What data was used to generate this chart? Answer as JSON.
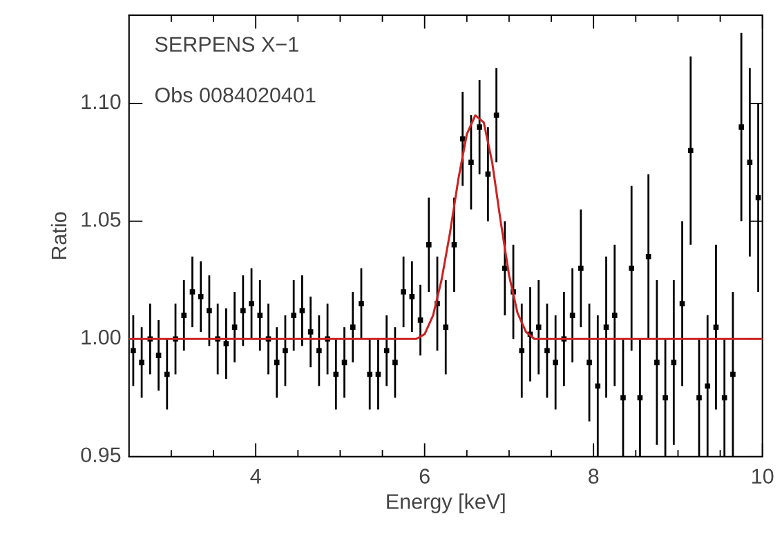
{
  "chart_data": {
    "type": "scatter",
    "xlabel": "Energy [keV]",
    "ylabel": "Ratio",
    "annotations": [
      "SERPENS X−1",
      "Obs 0084020401"
    ],
    "xlim": [
      2.5,
      10
    ],
    "xticks": [
      {
        "value": 3,
        "label": null
      },
      {
        "value": 3.5,
        "label": null
      },
      4,
      {
        "value": 4.5,
        "label": null
      },
      {
        "value": 5,
        "label": null
      },
      {
        "value": 5.5,
        "label": null
      },
      6,
      {
        "value": 6.5,
        "label": null
      },
      {
        "value": 7,
        "label": null
      },
      {
        "value": 7.5,
        "label": null
      },
      8,
      {
        "value": 8.5,
        "label": null
      },
      {
        "value": 9,
        "label": null
      },
      {
        "value": 9.5,
        "label": null
      },
      10
    ],
    "ylim": [
      0.95,
      1.1375
    ],
    "yticks": [
      {
        "value": 0.95,
        "label": "0.95"
      },
      {
        "value": 1.0,
        "label": "1.00"
      },
      {
        "value": 1.05,
        "label": "1.05"
      },
      {
        "value": 1.1,
        "label": "1.10"
      }
    ],
    "grid": false,
    "legend": false,
    "series": [
      {
        "marker": "square",
        "color": "#000000",
        "x": [
          2.55,
          2.65,
          2.75,
          2.85,
          2.95,
          3.05,
          3.15,
          3.25,
          3.35,
          3.45,
          3.55,
          3.65,
          3.75,
          3.85,
          3.95,
          4.05,
          4.15,
          4.25,
          4.35,
          4.45,
          4.55,
          4.65,
          4.75,
          4.85,
          4.95,
          5.05,
          5.15,
          5.25,
          5.35,
          5.45,
          5.55,
          5.65,
          5.75,
          5.85,
          5.95,
          6.05,
          6.15,
          6.25,
          6.35,
          6.45,
          6.55,
          6.65,
          6.75,
          6.85,
          6.95,
          7.05,
          7.15,
          7.25,
          7.35,
          7.45,
          7.55,
          7.65,
          7.75,
          7.85,
          7.95,
          8.05,
          8.15,
          8.25,
          8.35,
          8.45,
          8.55,
          8.65,
          8.75,
          8.85,
          8.95,
          9.05,
          9.15,
          9.25,
          9.35,
          9.45,
          9.55,
          9.65,
          9.75,
          9.85,
          9.95
        ],
        "values": [
          0.995,
          0.99,
          1.0,
          0.993,
          0.985,
          1.0,
          1.01,
          1.02,
          1.018,
          1.012,
          1.0,
          0.998,
          1.005,
          1.012,
          1.015,
          1.01,
          1.0,
          0.99,
          0.995,
          1.01,
          1.012,
          1.003,
          0.995,
          1.0,
          0.985,
          0.99,
          1.005,
          1.015,
          0.985,
          0.985,
          0.995,
          0.99,
          1.02,
          1.018,
          1.008,
          1.04,
          1.015,
          1.005,
          1.04,
          1.085,
          1.075,
          1.09,
          1.07,
          1.095,
          1.03,
          1.02,
          0.995,
          1.002,
          1.005,
          0.995,
          0.99,
          1.0,
          1.01,
          1.03,
          0.99,
          0.98,
          1.005,
          1.01,
          0.975,
          1.03,
          0.975,
          1.035,
          0.99,
          0.975,
          0.99,
          1.015,
          1.08,
          0.975,
          0.98,
          1.005,
          0.975,
          0.985,
          1.09,
          1.075,
          1.06
        ],
        "errors": [
          0.015,
          0.015,
          0.015,
          0.015,
          0.015,
          0.015,
          0.015,
          0.015,
          0.015,
          0.015,
          0.015,
          0.015,
          0.015,
          0.015,
          0.015,
          0.015,
          0.015,
          0.015,
          0.015,
          0.015,
          0.015,
          0.015,
          0.015,
          0.015,
          0.015,
          0.015,
          0.015,
          0.015,
          0.015,
          0.015,
          0.015,
          0.015,
          0.015,
          0.015,
          0.015,
          0.02,
          0.02,
          0.02,
          0.02,
          0.02,
          0.02,
          0.02,
          0.02,
          0.02,
          0.02,
          0.02,
          0.02,
          0.02,
          0.02,
          0.02,
          0.02,
          0.02,
          0.02,
          0.025,
          0.025,
          0.03,
          0.03,
          0.03,
          0.025,
          0.035,
          0.025,
          0.035,
          0.035,
          0.025,
          0.035,
          0.035,
          0.04,
          0.025,
          0.03,
          0.035,
          0.025,
          0.035,
          0.04,
          0.04,
          0.04
        ]
      },
      {
        "type": "line",
        "marker": "none",
        "line_style": "solid",
        "color": "#cc2222",
        "x": [
          2.5,
          5.9,
          6.0,
          6.1,
          6.2,
          6.3,
          6.4,
          6.5,
          6.6,
          6.7,
          6.8,
          6.9,
          7.0,
          7.1,
          7.2,
          7.3,
          10
        ],
        "values": [
          1.0,
          1.0,
          1.002,
          1.01,
          1.025,
          1.045,
          1.068,
          1.087,
          1.095,
          1.092,
          1.075,
          1.05,
          1.027,
          1.011,
          1.003,
          1.0,
          1.0
        ]
      }
    ]
  }
}
